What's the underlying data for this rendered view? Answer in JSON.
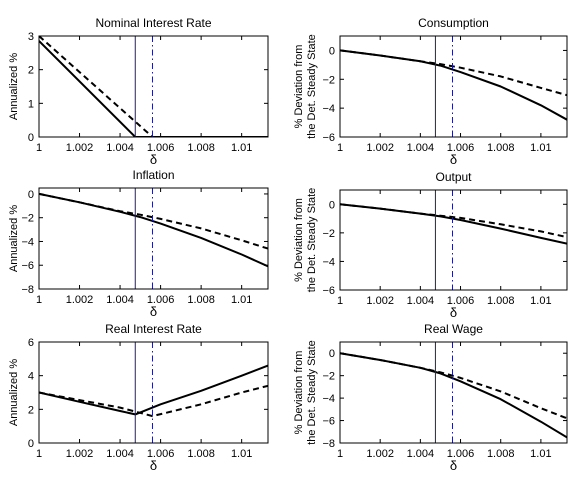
{
  "chart_data": [
    {
      "type": "line",
      "title": "Nominal Interest Rate",
      "xlabel": "δ",
      "ylabel": [
        "Annualized %"
      ],
      "xlim": [
        1,
        1.0113
      ],
      "ylim": [
        0,
        3
      ],
      "xticks": [
        1,
        1.002,
        1.004,
        1.006,
        1.008,
        1.01
      ],
      "xtick_labels": [
        "1",
        "1.002",
        "1.004",
        "1.006",
        "1.008",
        "1.01"
      ],
      "yticks": [
        0,
        1,
        2,
        3
      ],
      "ytick_labels": [
        "0",
        "1",
        "2",
        "3"
      ],
      "vlines": [
        {
          "x": 1.00475,
          "style": "solid",
          "color": "#1c1c8c"
        },
        {
          "x": 1.0056,
          "style": "dashdot",
          "color": "#1c1c8c"
        }
      ],
      "series": [
        {
          "style": "solid",
          "color": "#000000",
          "x": [
            1,
            1.00475,
            1.0113
          ],
          "y": [
            2.85,
            0,
            0
          ]
        },
        {
          "style": "dashed",
          "color": "#000000",
          "x": [
            1,
            1.0056,
            1.0113
          ],
          "y": [
            3,
            0,
            0
          ]
        }
      ]
    },
    {
      "type": "line",
      "title": "Consumption",
      "xlabel": "δ",
      "ylabel": [
        "% Deviation from",
        "the Det. Steady State"
      ],
      "xlim": [
        1,
        1.0113
      ],
      "ylim": [
        -6,
        1
      ],
      "xticks": [
        1,
        1.002,
        1.004,
        1.006,
        1.008,
        1.01
      ],
      "xtick_labels": [
        "1",
        "1.002",
        "1.004",
        "1.006",
        "1.008",
        "1.01"
      ],
      "yticks": [
        -6,
        -4,
        -2,
        0
      ],
      "ytick_labels": [
        "−6",
        "−4",
        "−2",
        "0"
      ],
      "vlines": [
        {
          "x": 1.00475,
          "style": "solid",
          "color": "#1c1c8c"
        },
        {
          "x": 1.0056,
          "style": "dashdot",
          "color": "#1c1c8c"
        }
      ],
      "series": [
        {
          "style": "solid",
          "color": "#000000",
          "x": [
            1,
            1.002,
            1.004,
            1.005,
            1.006,
            1.008,
            1.01,
            1.0113
          ],
          "y": [
            0,
            -0.35,
            -0.75,
            -1.05,
            -1.5,
            -2.5,
            -3.8,
            -4.8
          ]
        },
        {
          "style": "dashed",
          "color": "#000000",
          "x": [
            1,
            1.002,
            1.004,
            1.005,
            1.006,
            1.008,
            1.01,
            1.0113
          ],
          "y": [
            0,
            -0.35,
            -0.75,
            -0.95,
            -1.2,
            -1.8,
            -2.6,
            -3.1
          ]
        }
      ]
    },
    {
      "type": "line",
      "title": "Inflation",
      "xlabel": "δ",
      "ylabel": [
        "Annualized %"
      ],
      "xlim": [
        1,
        1.0113
      ],
      "ylim": [
        -8,
        0.5
      ],
      "xticks": [
        1,
        1.002,
        1.004,
        1.006,
        1.008,
        1.01
      ],
      "xtick_labels": [
        "1",
        "1.002",
        "1.004",
        "1.006",
        "1.008",
        "1.01"
      ],
      "yticks": [
        -8,
        -6,
        -4,
        -2,
        0
      ],
      "ytick_labels": [
        "−8",
        "−6",
        "−4",
        "−2",
        "0"
      ],
      "vlines": [
        {
          "x": 1.00475,
          "style": "solid",
          "color": "#1c1c8c"
        },
        {
          "x": 1.0056,
          "style": "dashdot",
          "color": "#1c1c8c"
        }
      ],
      "series": [
        {
          "style": "solid",
          "color": "#000000",
          "x": [
            1,
            1.002,
            1.004,
            1.005,
            1.006,
            1.008,
            1.01,
            1.0113
          ],
          "y": [
            0,
            -0.7,
            -1.5,
            -1.95,
            -2.5,
            -3.7,
            -5.1,
            -6.1
          ]
        },
        {
          "style": "dashed",
          "color": "#000000",
          "x": [
            1,
            1.002,
            1.004,
            1.005,
            1.006,
            1.008,
            1.01,
            1.0113
          ],
          "y": [
            0,
            -0.7,
            -1.45,
            -1.75,
            -2.1,
            -2.9,
            -3.9,
            -4.6
          ]
        }
      ]
    },
    {
      "type": "line",
      "title": "Output",
      "xlabel": "δ",
      "ylabel": [
        "% Deviation from",
        "the Det. Steady State"
      ],
      "xlim": [
        1,
        1.0113
      ],
      "ylim": [
        -6,
        1
      ],
      "xticks": [
        1,
        1.002,
        1.004,
        1.006,
        1.008,
        1.01
      ],
      "xtick_labels": [
        "1",
        "1.002",
        "1.004",
        "1.006",
        "1.008",
        "1.01"
      ],
      "yticks": [
        -6,
        -4,
        -2,
        0
      ],
      "ytick_labels": [
        "−6",
        "−4",
        "−2",
        "0"
      ],
      "vlines": [
        {
          "x": 1.00475,
          "style": "solid",
          "color": "#1c1c8c"
        },
        {
          "x": 1.0056,
          "style": "dashdot",
          "color": "#1c1c8c"
        }
      ],
      "series": [
        {
          "style": "solid",
          "color": "#000000",
          "x": [
            1,
            1.002,
            1.004,
            1.005,
            1.006,
            1.008,
            1.01,
            1.0113
          ],
          "y": [
            0,
            -0.3,
            -0.65,
            -0.85,
            -1.1,
            -1.7,
            -2.35,
            -2.75
          ]
        },
        {
          "style": "dashed",
          "color": "#000000",
          "x": [
            1,
            1.002,
            1.004,
            1.005,
            1.006,
            1.008,
            1.01,
            1.0113
          ],
          "y": [
            0,
            -0.3,
            -0.65,
            -0.8,
            -0.95,
            -1.4,
            -1.9,
            -2.3
          ]
        }
      ]
    },
    {
      "type": "line",
      "title": "Real Interest Rate",
      "xlabel": "δ",
      "ylabel": [
        "Annualized %"
      ],
      "xlim": [
        1,
        1.0113
      ],
      "ylim": [
        0,
        6
      ],
      "xticks": [
        1,
        1.002,
        1.004,
        1.006,
        1.008,
        1.01
      ],
      "xtick_labels": [
        "1",
        "1.002",
        "1.004",
        "1.006",
        "1.008",
        "1.01"
      ],
      "yticks": [
        0,
        2,
        4,
        6
      ],
      "ytick_labels": [
        "0",
        "2",
        "4",
        "6"
      ],
      "vlines": [
        {
          "x": 1.00475,
          "style": "solid",
          "color": "#1c1c8c"
        },
        {
          "x": 1.0056,
          "style": "dashdot",
          "color": "#1c1c8c"
        }
      ],
      "series": [
        {
          "style": "solid",
          "color": "#000000",
          "x": [
            1,
            1.002,
            1.004,
            1.00475,
            1.006,
            1.008,
            1.01,
            1.0113
          ],
          "y": [
            3,
            2.45,
            1.9,
            1.7,
            2.3,
            3.1,
            4.0,
            4.6
          ]
        },
        {
          "style": "dashed",
          "color": "#000000",
          "x": [
            1,
            1.002,
            1.004,
            1.0056,
            1.008,
            1.01,
            1.0113
          ],
          "y": [
            3,
            2.55,
            2.1,
            1.6,
            2.3,
            3.0,
            3.4
          ]
        }
      ]
    },
    {
      "type": "line",
      "title": "Real Wage",
      "xlabel": "δ",
      "ylabel": [
        "% Deviation from",
        "the Det. Steady State"
      ],
      "xlim": [
        1,
        1.0113
      ],
      "ylim": [
        -8,
        1
      ],
      "xticks": [
        1,
        1.002,
        1.004,
        1.006,
        1.008,
        1.01
      ],
      "xtick_labels": [
        "1",
        "1.002",
        "1.004",
        "1.006",
        "1.008",
        "1.01"
      ],
      "yticks": [
        -8,
        -6,
        -4,
        -2,
        0
      ],
      "ytick_labels": [
        "−8",
        "−6",
        "−4",
        "−2",
        "0"
      ],
      "vlines": [
        {
          "x": 1.00475,
          "style": "solid",
          "color": "#1c1c8c"
        },
        {
          "x": 1.0056,
          "style": "dashdot",
          "color": "#1c1c8c"
        }
      ],
      "series": [
        {
          "style": "solid",
          "color": "#000000",
          "x": [
            1,
            1.002,
            1.004,
            1.005,
            1.006,
            1.008,
            1.01,
            1.0113
          ],
          "y": [
            0,
            -0.6,
            -1.3,
            -1.8,
            -2.5,
            -4.1,
            -6.1,
            -7.5
          ]
        },
        {
          "style": "dashed",
          "color": "#000000",
          "x": [
            1,
            1.002,
            1.004,
            1.005,
            1.006,
            1.008,
            1.01,
            1.0113
          ],
          "y": [
            0,
            -0.6,
            -1.3,
            -1.7,
            -2.2,
            -3.4,
            -4.9,
            -5.8
          ]
        }
      ]
    }
  ]
}
